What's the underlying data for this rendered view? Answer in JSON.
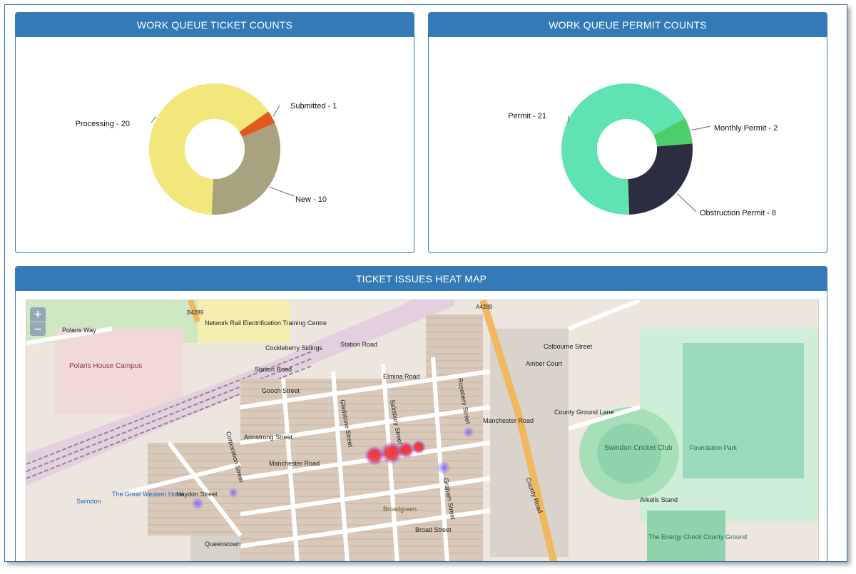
{
  "panels": {
    "tickets": {
      "title": "WORK QUEUE TICKET COUNTS",
      "chart_data": {
        "type": "pie",
        "categories": [
          "Submitted",
          "New",
          "Processing"
        ],
        "values": [
          1,
          10,
          20
        ],
        "labels": [
          "Submitted - 1",
          "New - 10",
          "Processing - 20"
        ],
        "colors": [
          "#e05a1e",
          "#a8a37e",
          "#f1e77a"
        ]
      }
    },
    "permits": {
      "title": "WORK QUEUE PERMIT COUNTS",
      "chart_data": {
        "type": "pie",
        "categories": [
          "Monthly Permit",
          "Obstruction Permit",
          "Permit"
        ],
        "values": [
          2,
          8,
          21
        ],
        "labels": [
          "Monthly Permit - 2",
          "Obstruction Permit - 8",
          "Permit - 21"
        ],
        "colors": [
          "#4ccf6a",
          "#2d2d42",
          "#5fe3b0"
        ]
      }
    },
    "heatmap": {
      "title": "TICKET ISSUES HEAT MAP",
      "zoom_in": "+",
      "zoom_out": "−",
      "map_labels": {
        "polaris_way": "Polaris Way",
        "polaris_house": "Polaris House Campus",
        "station_road": "Station Road",
        "station_road2": "Station Road",
        "gooch_street": "Gooch Street",
        "manchester_road": "Manchester Road",
        "manchester_road2": "Manchester Road",
        "broad_street": "Broad Street",
        "colbourne_street": "Colbourne Street",
        "amber_court": "Amber Court",
        "county_road": "County Road",
        "county_ground_lane": "County Ground Lane",
        "cricket_club": "Swindon Cricket Club",
        "foundation_park": "Foundation Park",
        "energy_check": "The Energy Check County Ground",
        "arkells": "Arkells Stand",
        "broadgreen": "Broadgreen",
        "cockleberry": "Cockleberry Sidings",
        "network_rail": "Network Rail Electrification Training Centre",
        "a4289": "A4289",
        "b4289": "B4289",
        "queenstown": "Queenstown",
        "great_western": "The Great Western Hotel",
        "swindon": "Swindon",
        "gladstone": "Gladstone Street",
        "salisbury": "Salisbury Street",
        "graham": "Graham Street",
        "armstrong": "Armstrong Street",
        "elmina": "Elmina Road",
        "corporation": "Corporation Street",
        "rosebery": "Rosebery Street",
        "haydon": "Haydon Street"
      }
    }
  }
}
